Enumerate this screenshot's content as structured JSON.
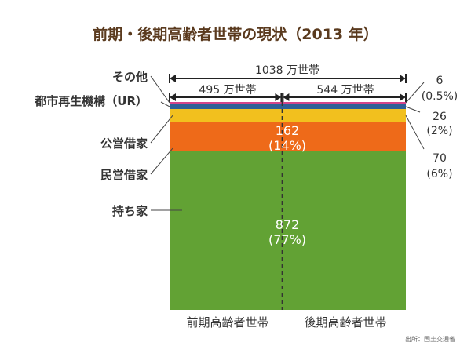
{
  "chart_data": {
    "type": "bar",
    "subtype": "stacked-100-mosaic",
    "title": "前期・後期高齢者世帯の現状（2013 年）",
    "total_label": "1038 万世帯",
    "columns": [
      {
        "label": "前期高齢者世帯",
        "width_label": "495 万世帯",
        "households": 495
      },
      {
        "label": "後期高齢者世帯",
        "width_label": "544 万世帯",
        "households": 544
      }
    ],
    "series": [
      {
        "name": "その他",
        "value": 6,
        "value_label": "6",
        "pct_label": "(0.5%)",
        "color": "#d4458a"
      },
      {
        "name": "都市再生機構（UR）",
        "value": 26,
        "value_label": "26",
        "pct_label": "(2%)",
        "color": "#2f5f97"
      },
      {
        "name": "公営借家",
        "value": 70,
        "value_label": "70",
        "pct_label": "(6%)",
        "color": "#f2c01e"
      },
      {
        "name": "民営借家",
        "value": 162,
        "value_label": "162",
        "pct_label": "(14%)",
        "color": "#ee6a19"
      },
      {
        "name": "持ち家",
        "value": 872,
        "value_label": "872",
        "pct_label": "(77%)",
        "color": "#62a234"
      }
    ],
    "source": "出所：国土交通省",
    "title_color": "#5a3a1e"
  }
}
